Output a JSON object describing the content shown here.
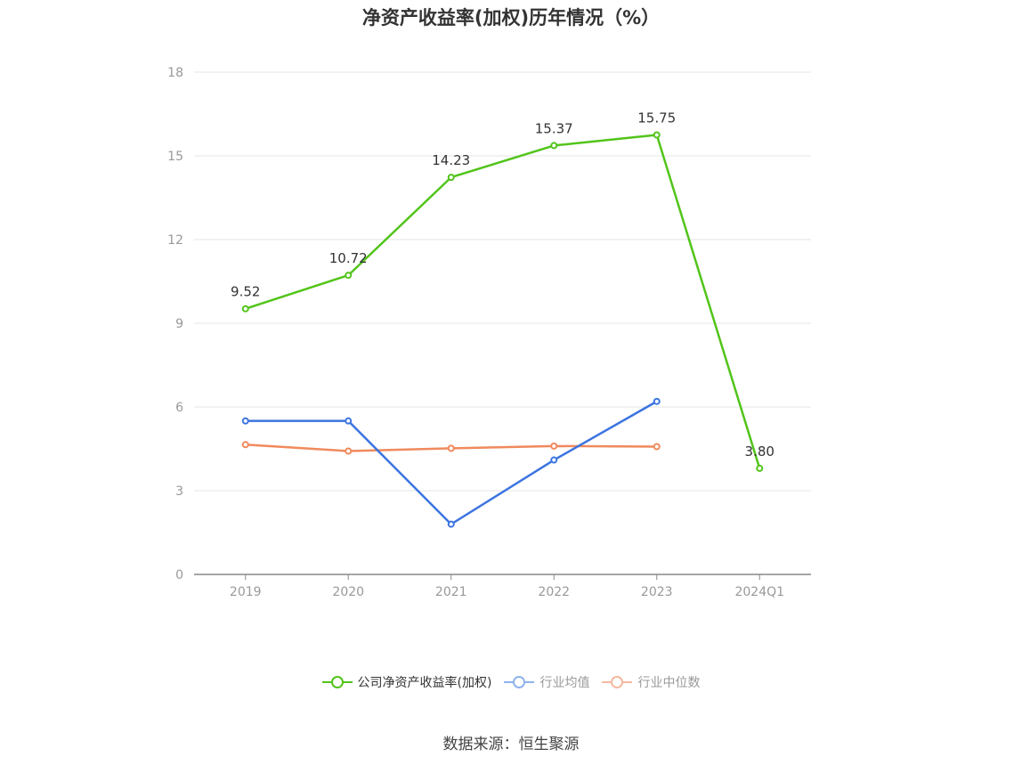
{
  "chart_data": {
    "type": "line",
    "title": "净资产收益率(加权)历年情况（%）",
    "categories": [
      "2019",
      "2020",
      "2021",
      "2022",
      "2023",
      "2024Q1"
    ],
    "ylim": [
      0,
      18
    ],
    "yticks": [
      0,
      3,
      6,
      9,
      12,
      15,
      18
    ],
    "grid": true,
    "legend_position": "bottom",
    "series": [
      {
        "name": "公司净资产收益率(加权)",
        "color": "#52c41a",
        "values": [
          9.52,
          10.72,
          14.23,
          15.37,
          15.75,
          3.8
        ],
        "labels": [
          "9.52",
          "10.72",
          "14.23",
          "15.37",
          "15.75",
          "3.80"
        ],
        "show_labels": true
      },
      {
        "name": "行业均值",
        "color": "#3b74e0",
        "values": [
          5.5,
          5.5,
          1.8,
          4.1,
          6.2,
          null
        ],
        "show_labels": false
      },
      {
        "name": "行业中位数",
        "color": "#f08a5d",
        "values": [
          4.65,
          4.42,
          4.52,
          4.6,
          4.58,
          null
        ],
        "show_labels": false
      }
    ],
    "legend_text_colors": [
      "#333333",
      "#999999",
      "#999999"
    ],
    "legend_swatch_colors": [
      "#52c41a",
      "#8fb3ee",
      "#f5b9a0"
    ]
  },
  "source": "数据来源：恒生聚源"
}
